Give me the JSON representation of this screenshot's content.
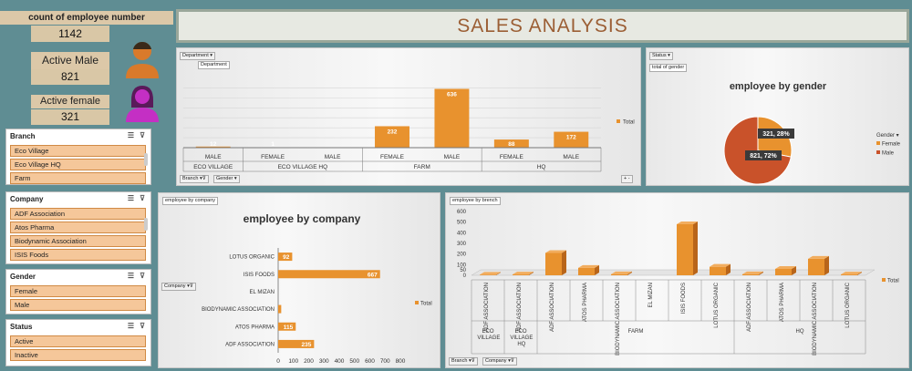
{
  "kpi": {
    "count_label": "count of employee number",
    "count_value": "1142",
    "male_label": "Active Male",
    "male_value": "821",
    "female_label": "Active female",
    "female_value": "321"
  },
  "dashboard_title": "SALES ANALYSIS",
  "slicers": {
    "branch": {
      "title": "Branch",
      "items": [
        "Eco Village",
        "Eco Village HQ",
        "Farm"
      ]
    },
    "company": {
      "title": "Company",
      "items": [
        "ADF Association",
        "Atos Pharma",
        "Biodynamic Association",
        "ISIS Foods"
      ]
    },
    "gender": {
      "title": "Gender",
      "items": [
        "Female",
        "Male"
      ]
    },
    "status": {
      "title": "Status",
      "items": [
        "Active",
        "Inactive"
      ]
    }
  },
  "pivot_buttons": {
    "department": "Department",
    "department_tooltip": "Department",
    "branch": "Branch",
    "gender": "Gender",
    "status": "Status",
    "total_of_gender": "total of gender",
    "company": "Company",
    "employee_by_company": "employee by company",
    "employee_by_brench": "employee by brench"
  },
  "colors": {
    "accent": "#e8922e",
    "accent_dark": "#b8651a",
    "title": "#9b5e34",
    "pie_female": "#e8922e",
    "pie_male": "#c9522a"
  },
  "chart_data": [
    {
      "type": "bar",
      "title": "",
      "legend": [
        "Total"
      ],
      "categories": [
        {
          "gender": "MALE",
          "branch": "ECO VILLAGE",
          "value": 12
        },
        {
          "gender": "FEMALE",
          "branch": "ECO VILLAGE HQ",
          "value": 1
        },
        {
          "gender": "MALE",
          "branch": "ECO VILLAGE HQ",
          "value": 0
        },
        {
          "gender": "FEMALE",
          "branch": "FARM",
          "value": 232
        },
        {
          "gender": "MALE",
          "branch": "FARM",
          "value": 636
        },
        {
          "gender": "FEMALE",
          "branch": "HQ",
          "value": 88
        },
        {
          "gender": "MALE",
          "branch": "HQ",
          "value": 172
        }
      ],
      "data_labels": [
        "12",
        "1",
        "",
        "232",
        "636",
        "88",
        "172"
      ],
      "branch_groups": [
        "ECO VILLAGE",
        "ECO VILLAGE HQ",
        "FARM",
        "HQ"
      ],
      "ylim": [
        0,
        700
      ]
    },
    {
      "type": "pie",
      "title": "employee by gender",
      "legend_title": "Gender",
      "slices": [
        {
          "label": "Female",
          "value": 321,
          "percent": 28,
          "text": "321, 28%"
        },
        {
          "label": "Male",
          "value": 821,
          "percent": 72,
          "text": "821, 72%"
        }
      ]
    },
    {
      "type": "bar",
      "orientation": "horizontal",
      "title": "employee by company",
      "legend": [
        "Total"
      ],
      "categories": [
        "LOTUS ORGANIC",
        "ISIS FOODS",
        "EL MIZAN",
        "BIODYNAMIC ASSOCIATION",
        "ATOS PHARMA",
        "ADF ASSOCIATION"
      ],
      "values": [
        92,
        667,
        0,
        20,
        115,
        235
      ],
      "data_labels": [
        "92",
        "667",
        "",
        "",
        "115",
        "235"
      ],
      "xticks": [
        "0",
        "100",
        "200",
        "300",
        "400",
        "500",
        "600",
        "700",
        "800"
      ],
      "xlim": [
        0,
        800
      ]
    },
    {
      "type": "bar",
      "style": "3d",
      "title": "",
      "legend": [
        "Total"
      ],
      "yticks": [
        "0",
        "50",
        "100",
        "200",
        "300",
        "400",
        "500",
        "600"
      ],
      "ylim": [
        0,
        600
      ],
      "categories": [
        {
          "company": "ADF ASSOCIATION",
          "branch": "ECO VILLAGE",
          "value": 5
        },
        {
          "company": "ADF ASSOCIATION",
          "branch": "ECO VILLAGE HQ",
          "value": 8
        },
        {
          "company": "ADF ASSOCIATION",
          "branch": "FARM",
          "value": 210
        },
        {
          "company": "ATOS PHARMA",
          "branch": "FARM",
          "value": 70
        },
        {
          "company": "BIODYNAMIC ASSOCIATION",
          "branch": "FARM",
          "value": 10
        },
        {
          "company": "EL MIZAN",
          "branch": "FARM",
          "value": 0
        },
        {
          "company": "ISIS FOODS",
          "branch": "FARM",
          "value": 480
        },
        {
          "company": "LOTUS ORGANIC",
          "branch": "FARM",
          "value": 80
        },
        {
          "company": "ADF ASSOCIATION",
          "branch": "HQ",
          "value": 10
        },
        {
          "company": "ATOS PHARMA",
          "branch": "HQ",
          "value": 60
        },
        {
          "company": "BIODYNAMIC ASSOCIATION",
          "branch": "HQ",
          "value": 155
        },
        {
          "company": "LOTUS ORGANIC",
          "branch": "HQ",
          "value": 8
        }
      ],
      "branch_groups": [
        "ECO VILLAGE",
        "ECO VILLAGE HQ",
        "FARM",
        "HQ"
      ]
    }
  ]
}
